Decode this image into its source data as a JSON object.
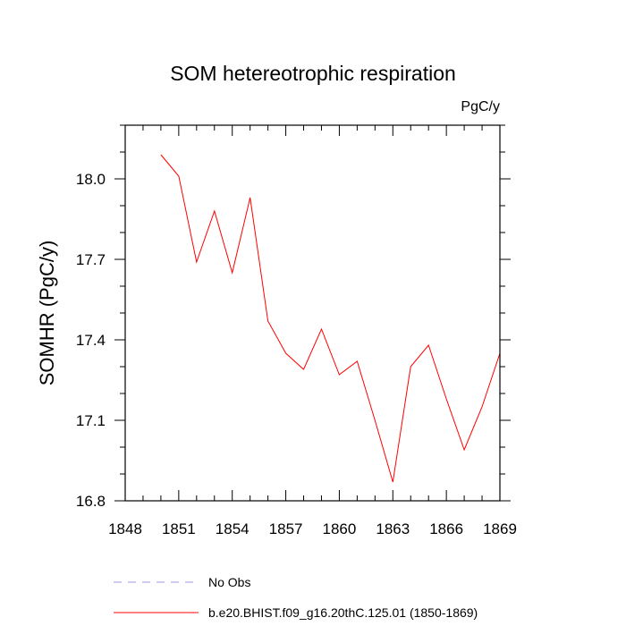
{
  "chart_data": {
    "type": "line",
    "title": "SOM hetereotrophic respiration",
    "units": "PgC/y",
    "ylabel": "SOMHR  (PgC/y)",
    "xlabel": "",
    "xlim": [
      1848,
      1869
    ],
    "ylim": [
      16.8,
      18.2
    ],
    "xticks": [
      1848,
      1851,
      1854,
      1857,
      1860,
      1863,
      1866,
      1869
    ],
    "xtick_labels": [
      "1848",
      "1851",
      "1854",
      "1857",
      "1860",
      "1863",
      "1866",
      "1869"
    ],
    "yticks": [
      16.8,
      17.1,
      17.4,
      17.7,
      18.0
    ],
    "ytick_labels": [
      "16.8",
      "17.1",
      "17.4",
      "17.7",
      "18.0"
    ],
    "grid": false,
    "legend_position": "bottom",
    "series": [
      {
        "name": "b.e20.BHIST.f09_g16.20thC.125.01 (1850-1869)",
        "color": "#ff0000",
        "style": "solid",
        "x": [
          1850,
          1851,
          1852,
          1853,
          1854,
          1855,
          1856,
          1857,
          1858,
          1859,
          1860,
          1861,
          1862,
          1863,
          1864,
          1865,
          1866,
          1867,
          1868,
          1869
        ],
        "y": [
          18.09,
          18.01,
          17.69,
          17.88,
          17.65,
          17.93,
          17.47,
          17.35,
          17.29,
          17.44,
          17.27,
          17.32,
          17.1,
          16.87,
          17.3,
          17.38,
          17.18,
          16.99,
          17.15,
          17.35
        ]
      },
      {
        "name": "No Obs",
        "color": "#9999ee",
        "style": "dashed",
        "x": [],
        "y": []
      }
    ]
  }
}
